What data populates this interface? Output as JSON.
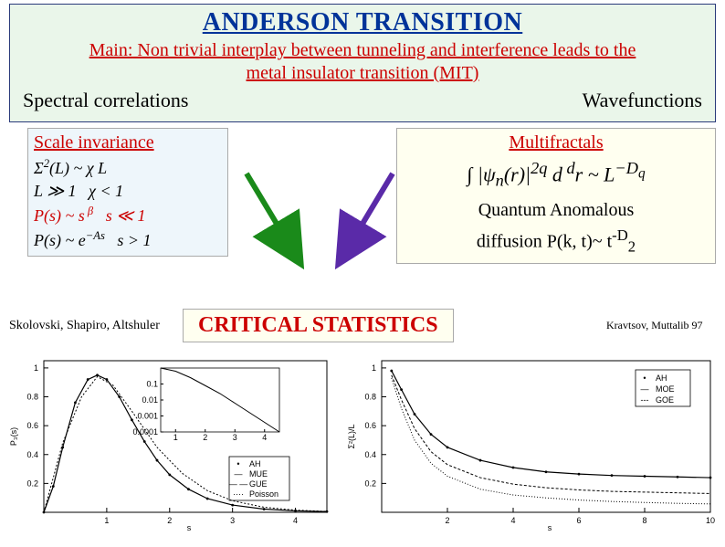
{
  "title": "ANDERSON TRANSITION",
  "subtitle_line1_prefix": "Main:",
  "subtitle_line1_rest": " Non trivial interplay between tunneling and interference leads to the",
  "subtitle_line2": "metal insulator transition (MIT)",
  "left_header": "Spectral correlations",
  "right_header": "Wavefunctions",
  "left_box_title": "Scale invariance",
  "right_box_title": "Multifractals",
  "qad1": "Quantum Anomalous",
  "qad2_prefix": "diffusion P(k, t)~ t",
  "qad2_exp": "-D",
  "qad2_exp_sub": "2",
  "authors_left": "Skolovski, Shapiro, Altshuler",
  "crit_label": "CRITICAL STATISTICS",
  "authors_right": "Kravtsov, Muttalib 97",
  "colors": {
    "title": "#003399",
    "accent_red": "#cc0000",
    "title_box_bg": "#eaf6ea",
    "title_box_border": "#2a3a7a",
    "yellow_box_bg": "#fffff0",
    "blue_box_bg": "#eef6fb",
    "arrow_green": "#1a8a1a",
    "arrow_purple": "#5a2aa8"
  },
  "integral_formula": "∫ |ψₙ(r)|^{2q} d^{d}r ~ L^{−D_q}",
  "left_eqs": {
    "line1": "Σ²(L) ~ χ L",
    "line2_left": "L ≫ 1",
    "line2_right": "χ < 1",
    "line3_left": "P(s) ~ s^{β}",
    "line3_right": "s ≪ 1",
    "line4_left": "P(s) ~ e^{−As}",
    "line4_right": "s > 1"
  },
  "plot_left": {
    "type": "line",
    "ylabel": "P₃(s)",
    "xlabel": "s",
    "xlim": [
      0,
      4.5
    ],
    "ylim": [
      0,
      1.05
    ],
    "xtick": [
      1,
      2,
      3,
      4
    ],
    "ytick": [
      0.2,
      0.4,
      0.6,
      0.8,
      1
    ],
    "legend": [
      "AH",
      "MUE",
      "GUE",
      "Poisson"
    ],
    "curve_main": {
      "x": [
        0,
        0.15,
        0.3,
        0.5,
        0.7,
        0.85,
        1.0,
        1.2,
        1.4,
        1.6,
        1.8,
        2.0,
        2.3,
        2.6,
        3.0,
        3.5,
        4.0,
        4.5
      ],
      "y": [
        0,
        0.18,
        0.45,
        0.76,
        0.92,
        0.95,
        0.92,
        0.8,
        0.64,
        0.49,
        0.36,
        0.26,
        0.16,
        0.095,
        0.05,
        0.022,
        0.01,
        0.005
      ],
      "color": "#000000"
    },
    "curve_dotted": {
      "x": [
        0,
        0.3,
        0.6,
        0.85,
        1.1,
        1.4,
        1.8,
        2.2,
        2.6,
        3.0,
        3.5,
        4.0,
        4.5
      ],
      "y": [
        0,
        0.48,
        0.8,
        0.94,
        0.88,
        0.7,
        0.45,
        0.27,
        0.15,
        0.08,
        0.035,
        0.015,
        0.006
      ],
      "color": "#000000"
    },
    "inset": {
      "xlim": [
        0.5,
        4.5
      ],
      "ylim_log": [
        -4,
        0
      ],
      "xtick": [
        1,
        2,
        3,
        4
      ],
      "ytick_log": [
        -1,
        -2,
        -3,
        -4
      ],
      "line": {
        "x": [
          0.5,
          1,
          1.5,
          2,
          2.5,
          3,
          3.5,
          4,
          4.5
        ],
        "ylog": [
          0,
          -0.2,
          -0.6,
          -1.1,
          -1.6,
          -2.2,
          -2.8,
          -3.4,
          -4
        ]
      }
    }
  },
  "plot_right": {
    "type": "line",
    "ylabel": "Σ²(L)/L",
    "xlabel": "s",
    "xlim": [
      0,
      10
    ],
    "ylim": [
      0,
      1.05
    ],
    "xtick": [
      2,
      4,
      6,
      8,
      10
    ],
    "ytick": [
      0.2,
      0.4,
      0.6,
      0.8,
      1
    ],
    "legend": [
      "AH",
      "MOE",
      "GOE"
    ],
    "curve_top": {
      "x": [
        0.3,
        0.6,
        1,
        1.5,
        2,
        3,
        4,
        5,
        6,
        7,
        8,
        9,
        10
      ],
      "y": [
        0.98,
        0.85,
        0.68,
        0.54,
        0.45,
        0.36,
        0.31,
        0.28,
        0.265,
        0.255,
        0.25,
        0.245,
        0.24
      ],
      "color": "#000000"
    },
    "curve_mid": {
      "x": [
        0.3,
        0.6,
        1,
        1.5,
        2,
        3,
        4,
        5,
        6,
        7,
        8,
        9,
        10
      ],
      "y": [
        0.95,
        0.78,
        0.58,
        0.42,
        0.33,
        0.24,
        0.195,
        0.17,
        0.155,
        0.145,
        0.14,
        0.135,
        0.13
      ],
      "color": "#000000"
    },
    "curve_low": {
      "x": [
        0.3,
        0.6,
        1,
        1.5,
        2,
        3,
        4,
        5,
        6,
        7,
        8,
        9,
        10
      ],
      "y": [
        0.93,
        0.72,
        0.5,
        0.34,
        0.25,
        0.16,
        0.12,
        0.1,
        0.085,
        0.075,
        0.068,
        0.062,
        0.058
      ],
      "color": "#000000"
    }
  }
}
